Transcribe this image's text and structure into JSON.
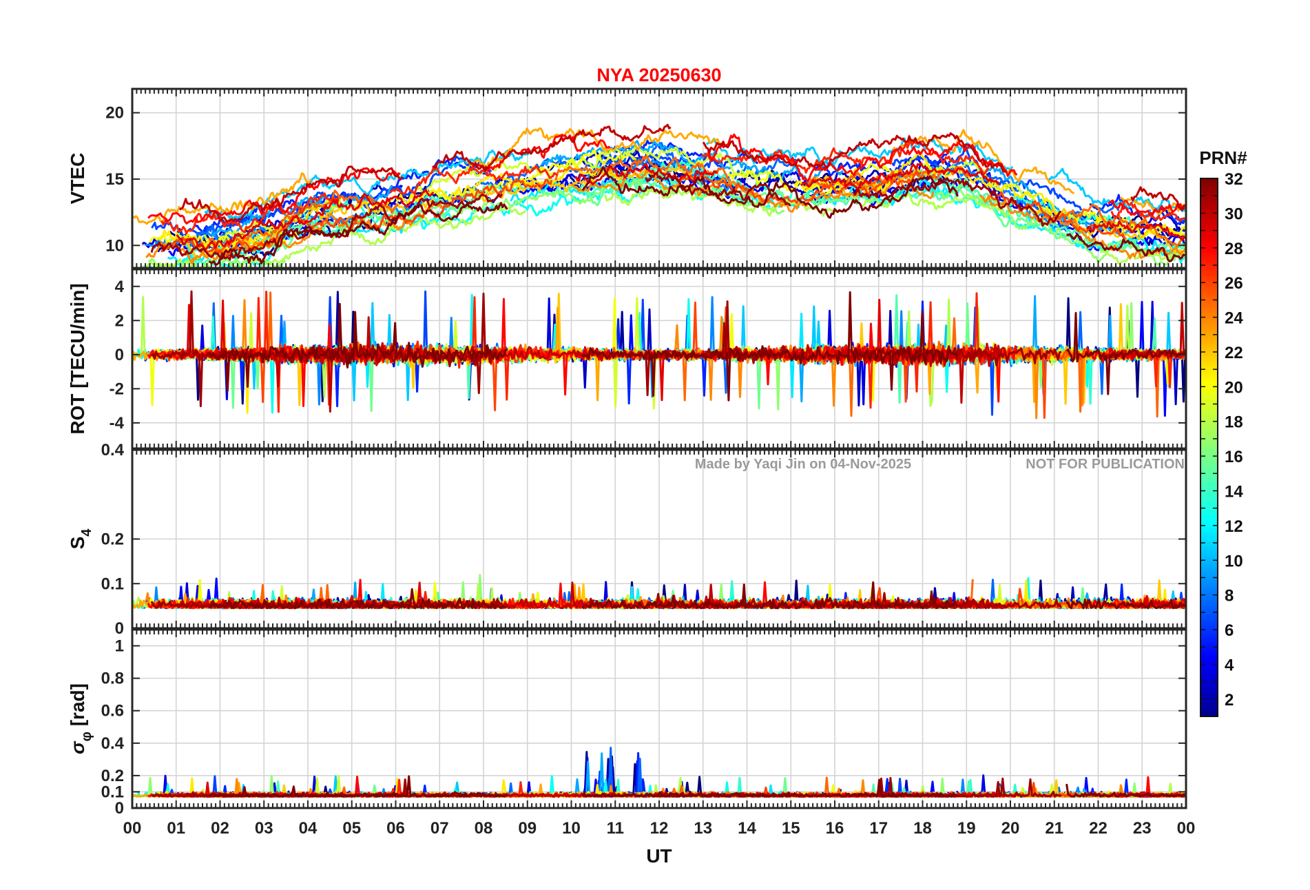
{
  "chart_data": {
    "type": "line",
    "title": "NYA   20250630",
    "station": "NYA",
    "date": "20250630",
    "xlabel": "UT",
    "x_range_hours": [
      0,
      24
    ],
    "x_ticks": [
      "00",
      "01",
      "02",
      "03",
      "04",
      "05",
      "06",
      "07",
      "08",
      "09",
      "10",
      "11",
      "12",
      "13",
      "14",
      "15",
      "16",
      "17",
      "18",
      "19",
      "20",
      "21",
      "22",
      "23",
      "00"
    ],
    "watermark": {
      "credit": "Made by Yaqi Jin on 04-Nov-2025",
      "notice": "NOT FOR PUBLICATION"
    },
    "colorbar": {
      "title": "PRN#",
      "range": [
        1,
        32
      ],
      "tick_labels": [
        "2",
        "4",
        "6",
        "8",
        "10",
        "12",
        "14",
        "16",
        "18",
        "20",
        "22",
        "24",
        "26",
        "28",
        "30",
        "32"
      ],
      "colormap": "jet"
    },
    "panels": [
      {
        "id": "vtec",
        "ylabel": "VTEC",
        "ylim": [
          8.3,
          21.8
        ],
        "yticks": [
          10,
          15,
          20
        ],
        "ytick_labels": [
          "10",
          "15",
          "20"
        ],
        "profile": {
          "hours": [
            0,
            1,
            2,
            3,
            4,
            5,
            6,
            7,
            8,
            9,
            10,
            11,
            12,
            13,
            14,
            15,
            16,
            17,
            18,
            19,
            20,
            21,
            22,
            23,
            24
          ],
          "mean": [
            10.3,
            10.7,
            10.5,
            11.0,
            12.3,
            13.0,
            13.3,
            14.0,
            14.5,
            15.0,
            15.6,
            16.0,
            16.2,
            15.6,
            15.0,
            14.6,
            14.6,
            15.0,
            15.8,
            15.6,
            14.0,
            12.6,
            11.6,
            11.3,
            11.2
          ],
          "spread": 2.2,
          "noise": 0.5
        }
      },
      {
        "id": "rot",
        "ylabel": "ROT [TECU/min]",
        "ylim": [
          -5.5,
          5.0
        ],
        "yticks": [
          -4,
          -2,
          0,
          2,
          4
        ],
        "ytick_labels": [
          "-4",
          "-2",
          "0",
          "2",
          "4"
        ],
        "profile": {
          "mean": 0,
          "noise": 0.32,
          "spike_rate": 0.012,
          "spike_scale": 3.4
        }
      },
      {
        "id": "s4",
        "ylabel": "S4",
        "ylabel_main": "S",
        "ylabel_sub": "4",
        "ylim": [
          0,
          0.4
        ],
        "yticks": [
          0,
          0.1,
          0.2,
          0.4
        ],
        "ytick_labels": [
          "0",
          "0.1",
          "0.2",
          "0.4"
        ],
        "profile": {
          "base": 0.045,
          "noise": 0.012,
          "spike_rate": 0.01,
          "spike_scale": 0.055
        }
      },
      {
        "id": "sigma_phi",
        "ylabel": "σφ [rad]",
        "ylabel_main": "σ",
        "ylabel_sub": "φ",
        "ylabel_unit": " [rad]",
        "ylim": [
          0,
          1.1
        ],
        "yticks": [
          0,
          0.1,
          0.2,
          0.4,
          0.6,
          0.8,
          1
        ],
        "ytick_labels": [
          "0",
          "0.1",
          "0.2",
          "0.4",
          "0.6",
          "0.8",
          "1"
        ],
        "profile": {
          "base": 0.07,
          "noise": 0.015,
          "spike_rate": 0.008,
          "spike_scale": 0.12,
          "peak": {
            "hour_from": 10.0,
            "hour_to": 11.7,
            "max": 0.39
          }
        }
      }
    ],
    "series_count": 32
  }
}
